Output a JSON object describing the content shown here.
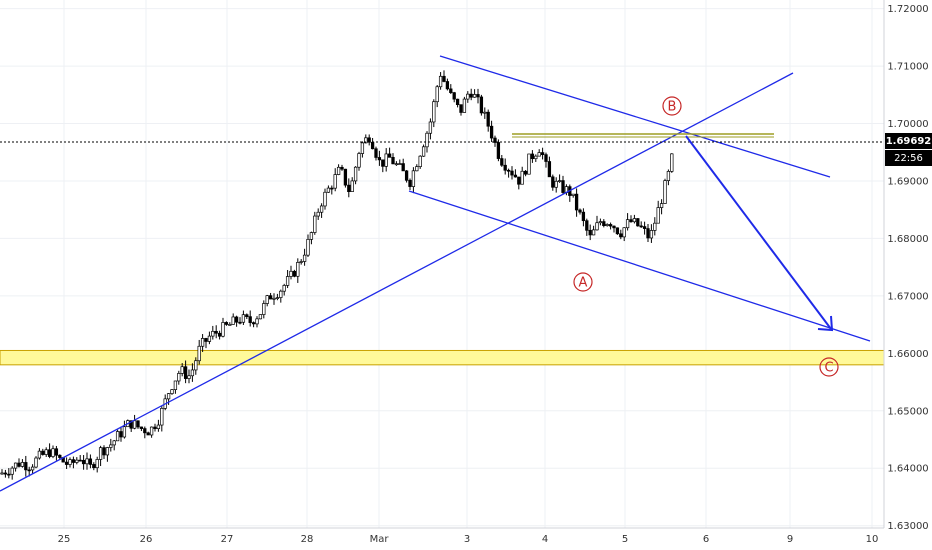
{
  "chart_data": {
    "type": "candlestick",
    "y_ticks": [
      "1.72000",
      "1.71000",
      "1.70000",
      "1.69000",
      "1.68000",
      "1.67000",
      "1.66000",
      "1.65000",
      "1.64000",
      "1.63000"
    ],
    "x_ticks": [
      "25",
      "26",
      "27",
      "28",
      "Mar",
      "3",
      "4",
      "5",
      "6",
      "9",
      "10"
    ],
    "ylim": [
      1.6296,
      1.7215
    ],
    "current_price": "1.69692",
    "countdown": "22:56",
    "support_zone": [
      1.658,
      1.6605
    ],
    "resistance_level": 1.698,
    "wave_labels": [
      "A",
      "B",
      "C"
    ],
    "colors": {
      "trendline": "#1f2ae8",
      "wave_label": "#c62828",
      "zone_fill": "#fff99a",
      "zone_border": "#c8a000",
      "resistance": "#9e9d24",
      "candle_up": "#ffffff",
      "candle_down": "#000000"
    },
    "candles_close_path": [
      [
        0,
        1.639
      ],
      [
        10,
        1.64
      ],
      [
        20,
        1.641
      ],
      [
        30,
        1.6405
      ],
      [
        40,
        1.642
      ],
      [
        50,
        1.643
      ],
      [
        60,
        1.6415
      ],
      [
        70,
        1.6405
      ],
      [
        80,
        1.642
      ],
      [
        90,
        1.64
      ],
      [
        100,
        1.643
      ],
      [
        110,
        1.644
      ],
      [
        120,
        1.646
      ],
      [
        130,
        1.648
      ],
      [
        140,
        1.647
      ],
      [
        150,
        1.6465
      ],
      [
        160,
        1.649
      ],
      [
        170,
        1.654
      ],
      [
        180,
        1.657
      ],
      [
        190,
        1.656
      ],
      [
        200,
        1.661
      ],
      [
        210,
        1.663
      ],
      [
        220,
        1.664
      ],
      [
        230,
        1.665
      ],
      [
        240,
        1.666
      ],
      [
        250,
        1.6655
      ],
      [
        260,
        1.667
      ],
      [
        270,
        1.67
      ],
      [
        280,
        1.671
      ],
      [
        290,
        1.673
      ],
      [
        300,
        1.676
      ],
      [
        310,
        1.68
      ],
      [
        320,
        1.686
      ],
      [
        330,
        1.689
      ],
      [
        340,
        1.692
      ],
      [
        350,
        1.688
      ],
      [
        360,
        1.696
      ],
      [
        370,
        1.698
      ],
      [
        380,
        1.693
      ],
      [
        390,
        1.694
      ],
      [
        400,
        1.692
      ],
      [
        410,
        1.69
      ],
      [
        420,
        1.695
      ],
      [
        430,
        1.7
      ],
      [
        440,
        1.709
      ],
      [
        450,
        1.705
      ],
      [
        460,
        1.702
      ],
      [
        470,
        1.706
      ],
      [
        480,
        1.703
      ],
      [
        490,
        1.699
      ],
      [
        500,
        1.694
      ],
      [
        510,
        1.692
      ],
      [
        520,
        1.69
      ],
      [
        530,
        1.694
      ],
      [
        540,
        1.696
      ],
      [
        550,
        1.69
      ],
      [
        560,
        1.689
      ],
      [
        570,
        1.688
      ],
      [
        580,
        1.684
      ],
      [
        590,
        1.68
      ],
      [
        600,
        1.683
      ],
      [
        610,
        1.683
      ],
      [
        620,
        1.681
      ],
      [
        630,
        1.683
      ],
      [
        640,
        1.682
      ],
      [
        650,
        1.68
      ],
      [
        660,
        1.686
      ],
      [
        670,
        1.692
      ],
      [
        675,
        1.697
      ]
    ]
  }
}
